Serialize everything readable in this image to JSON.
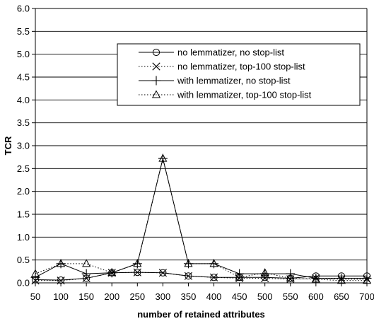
{
  "chart_data": {
    "type": "line",
    "title": "",
    "xlabel": "number of retained attributes",
    "ylabel": "TCR",
    "x": [
      50,
      100,
      150,
      200,
      250,
      300,
      350,
      400,
      450,
      500,
      550,
      600,
      650,
      700
    ],
    "xticks": [
      "50",
      "100",
      "150",
      "200",
      "250",
      "300",
      "350",
      "400",
      "450",
      "500",
      "550",
      "600",
      "650",
      "700"
    ],
    "ylim": [
      0,
      6
    ],
    "yticks": [
      "0.0",
      "0.5",
      "1.0",
      "1.5",
      "2.0",
      "2.5",
      "3.0",
      "3.5",
      "4.0",
      "4.5",
      "5.0",
      "5.5",
      "6.0"
    ],
    "grid": "horizontal",
    "legend_position": "top-right",
    "series": [
      {
        "name": "no lemmatizer, no stop-list",
        "marker": "circle",
        "dash": "solid",
        "values": [
          0.07,
          0.06,
          0.1,
          0.22,
          0.23,
          0.22,
          0.15,
          0.12,
          0.12,
          0.12,
          0.1,
          0.15,
          0.15,
          0.15
        ]
      },
      {
        "name": "no lemmatizer, top-100 stop-list",
        "marker": "x",
        "dash": "dotted",
        "values": [
          0.05,
          0.05,
          0.1,
          0.22,
          0.23,
          0.22,
          0.15,
          0.12,
          0.1,
          0.1,
          0.08,
          0.1,
          0.08,
          0.08
        ]
      },
      {
        "name": "with lemmatizer, no stop-list",
        "marker": "plus",
        "dash": "solid",
        "values": [
          0.12,
          0.42,
          0.2,
          0.22,
          0.42,
          2.72,
          0.42,
          0.42,
          0.2,
          0.2,
          0.2,
          0.1,
          0.1,
          0.1
        ]
      },
      {
        "name": "with lemmatizer, top-100 stop-list",
        "marker": "triangle",
        "dash": "dotted",
        "values": [
          0.2,
          0.42,
          0.42,
          0.22,
          0.42,
          2.72,
          0.42,
          0.42,
          0.12,
          0.22,
          0.1,
          0.08,
          0.05,
          0.05
        ]
      }
    ]
  }
}
